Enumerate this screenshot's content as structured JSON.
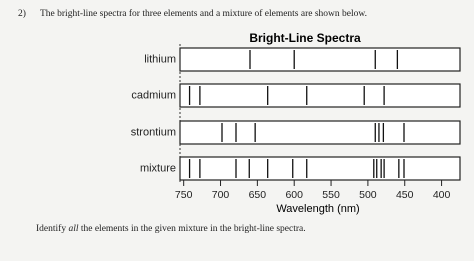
{
  "question": {
    "number": "2)",
    "prompt": "The bright-line spectra for three elements and a mixture of elements are shown below.",
    "instruction_start": "Identify",
    "instruction_emphasis": "all",
    "instruction_end": "the elements in the given mixture in the bright-line spectra."
  },
  "chart_data": {
    "type": "spectra",
    "title": "Bright-Line Spectra",
    "xlabel": "Wavelength (nm)",
    "xlim": [
      755,
      375
    ],
    "xticks": [
      750,
      700,
      650,
      600,
      550,
      500,
      450,
      400
    ],
    "series": [
      {
        "name": "lithium",
        "values": [
          660,
          600,
          490,
          460
        ]
      },
      {
        "name": "cadmium",
        "values": [
          742,
          728,
          636,
          583,
          505,
          478
        ]
      },
      {
        "name": "strontium",
        "values": [
          698,
          679,
          653,
          490,
          485,
          479,
          451
        ]
      },
      {
        "name": "mixture",
        "values": [
          742,
          728,
          679,
          661,
          636,
          602,
          583,
          492,
          488,
          482,
          478,
          458,
          451
        ]
      }
    ]
  }
}
